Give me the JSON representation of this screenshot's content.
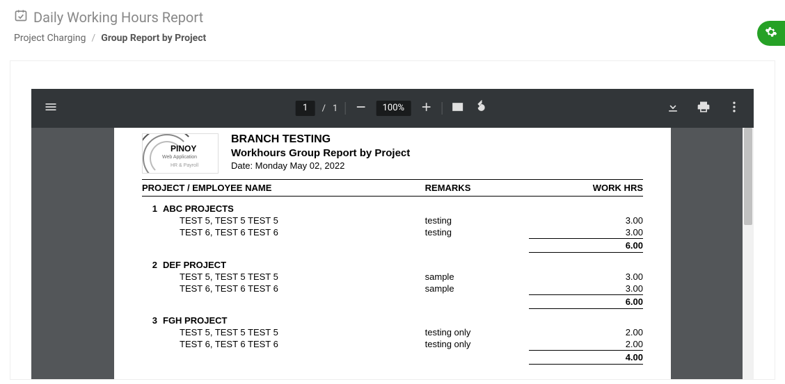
{
  "header": {
    "title": "Daily Working Hours Report"
  },
  "breadcrumb": {
    "parent": "Project Charging",
    "current": "Group Report by Project"
  },
  "pdf_toolbar": {
    "current_page": "1",
    "total_pages": "1",
    "zoom": "100%"
  },
  "report": {
    "logo": {
      "name": "PINOY",
      "sub1": "Web Application",
      "sub2": "HR & Payroll"
    },
    "company": "BRANCH TESTING",
    "title": "Workhours Group Report by Project",
    "date_label": "Date: Monday May 02, 2022",
    "columns": {
      "name": "PROJECT / EMPLOYEE NAME",
      "remarks": "REMARKS",
      "hours": "WORK HRS"
    },
    "projects": [
      {
        "idx": "1",
        "name": "ABC PROJECTS",
        "employees": [
          {
            "name": "TEST 5, TEST 5 TEST 5",
            "remarks": "testing",
            "hours": "3.00"
          },
          {
            "name": "TEST 6, TEST 6 TEST 6",
            "remarks": "testing",
            "hours": "3.00"
          }
        ],
        "subtotal": "6.00"
      },
      {
        "idx": "2",
        "name": "DEF PROJECT",
        "employees": [
          {
            "name": "TEST 5, TEST 5 TEST 5",
            "remarks": "sample",
            "hours": "3.00"
          },
          {
            "name": "TEST 6, TEST 6 TEST 6",
            "remarks": "sample",
            "hours": "3.00"
          }
        ],
        "subtotal": "6.00"
      },
      {
        "idx": "3",
        "name": "FGH PROJECT",
        "employees": [
          {
            "name": "TEST 5, TEST 5 TEST 5",
            "remarks": "testing only",
            "hours": "2.00"
          },
          {
            "name": "TEST 6, TEST 6 TEST 6",
            "remarks": "testing only",
            "hours": "2.00"
          }
        ],
        "subtotal": "4.00"
      }
    ]
  },
  "colors": {
    "toolbar_bg": "#323639",
    "pdf_bg": "#535659",
    "gear_bg": "#26a126",
    "text_muted": "#888888"
  }
}
